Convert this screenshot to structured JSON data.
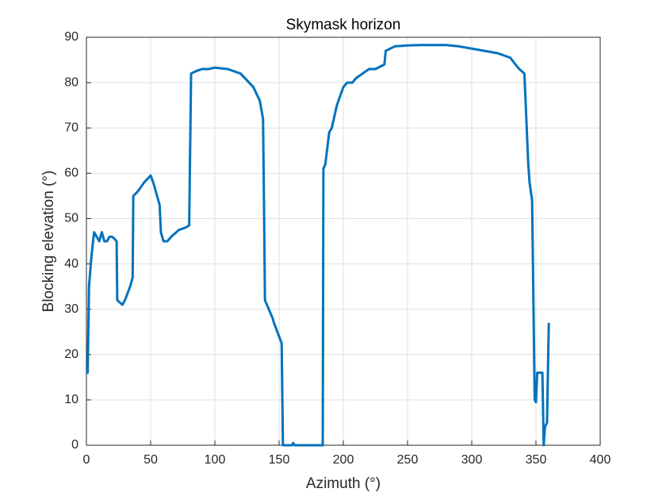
{
  "chart_data": {
    "type": "line",
    "title": "Skymask horizon",
    "x_label": "Azimuth (°)",
    "y_label": "Blocking elevation (°)",
    "xlim": [
      0,
      400
    ],
    "ylim": [
      0,
      90
    ],
    "xticks": [
      0,
      50,
      100,
      150,
      200,
      250,
      300,
      350,
      400
    ],
    "yticks": [
      0,
      10,
      20,
      30,
      40,
      50,
      60,
      70,
      80,
      90
    ],
    "grid": true,
    "series": [
      {
        "name": "Skymask",
        "color": "#0072bd",
        "x": [
          0,
          1,
          2,
          4,
          6,
          8,
          10,
          12,
          14,
          16,
          18,
          20,
          22,
          23.5,
          24,
          26,
          28,
          30,
          34,
          36,
          36.5,
          40,
          45,
          50,
          52,
          55,
          57,
          58,
          60,
          63,
          66,
          70,
          72,
          77,
          80,
          81.5,
          85,
          90,
          95,
          100,
          110,
          120,
          130,
          135,
          137.5,
          138,
          139,
          142,
          145,
          146,
          150,
          152,
          153,
          160,
          161,
          162,
          184,
          184.5,
          186,
          189,
          191,
          195,
          200,
          203,
          207,
          210,
          215,
          220,
          225,
          232,
          233,
          240,
          250,
          260,
          270,
          280,
          290,
          300,
          310,
          320,
          330,
          334,
          337,
          341,
          344,
          345,
          347,
          349,
          350,
          351,
          355,
          356,
          357,
          358.6,
          360
        ],
        "values": [
          16,
          16,
          35,
          42,
          47,
          46,
          45,
          47,
          45,
          45,
          46,
          46,
          45.5,
          45,
          32,
          31.5,
          31,
          32,
          35,
          37,
          55,
          56,
          58,
          59.5,
          58,
          55,
          53,
          47,
          45,
          45,
          46,
          47,
          47.5,
          48,
          48.5,
          82,
          82.5,
          83,
          83,
          83.3,
          83,
          82,
          79,
          76,
          72,
          60,
          32,
          30,
          28,
          27,
          24,
          22.5,
          0,
          0,
          0.5,
          0,
          0,
          61,
          62,
          69,
          70,
          75,
          79,
          80,
          80,
          81,
          82,
          83,
          83,
          84,
          87,
          88,
          88.2,
          88.3,
          88.3,
          88.3,
          88,
          87.5,
          87,
          86.5,
          85.5,
          84,
          83,
          82,
          62,
          58,
          54,
          10,
          9.5,
          16,
          16,
          0,
          4,
          5,
          27
        ]
      }
    ]
  }
}
